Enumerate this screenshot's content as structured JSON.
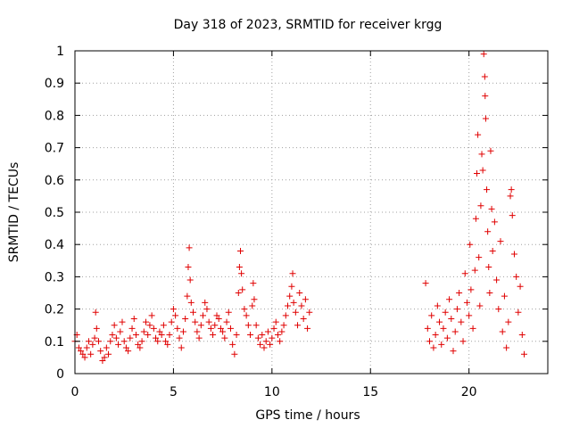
{
  "chart_data": {
    "type": "scatter",
    "title": "Day 318 of 2023, SRMTID for receiver krgg",
    "xlabel": "GPS time / hours",
    "ylabel": "SRMTID / TECUs",
    "xlim": [
      0,
      24
    ],
    "ylim": [
      0,
      1
    ],
    "x_ticks": [
      "0",
      "5",
      "10",
      "15",
      "20"
    ],
    "y_ticks": [
      "0",
      "0.1",
      "0.2",
      "0.3",
      "0.4",
      "0.5",
      "0.6",
      "0.7",
      "0.8",
      "0.9",
      "1"
    ],
    "grid": true,
    "marker": "plus",
    "color": "#e00000",
    "series": [
      {
        "name": "krgg",
        "points": [
          [
            0.0,
            0.1
          ],
          [
            0.1,
            0.12
          ],
          [
            0.2,
            0.08
          ],
          [
            0.3,
            0.07
          ],
          [
            0.4,
            0.06
          ],
          [
            0.5,
            0.05
          ],
          [
            0.6,
            0.08
          ],
          [
            0.7,
            0.1
          ],
          [
            0.8,
            0.06
          ],
          [
            0.9,
            0.09
          ],
          [
            1.0,
            0.11
          ],
          [
            1.05,
            0.19
          ],
          [
            1.1,
            0.14
          ],
          [
            1.2,
            0.1
          ],
          [
            1.3,
            0.07
          ],
          [
            1.4,
            0.04
          ],
          [
            1.5,
            0.05
          ],
          [
            1.6,
            0.08
          ],
          [
            1.7,
            0.06
          ],
          [
            1.8,
            0.1
          ],
          [
            1.9,
            0.12
          ],
          [
            2.0,
            0.15
          ],
          [
            2.1,
            0.11
          ],
          [
            2.2,
            0.09
          ],
          [
            2.3,
            0.13
          ],
          [
            2.4,
            0.16
          ],
          [
            2.5,
            0.1
          ],
          [
            2.6,
            0.08
          ],
          [
            2.7,
            0.07
          ],
          [
            2.8,
            0.11
          ],
          [
            2.9,
            0.14
          ],
          [
            3.0,
            0.17
          ],
          [
            3.1,
            0.12
          ],
          [
            3.2,
            0.09
          ],
          [
            3.3,
            0.08
          ],
          [
            3.4,
            0.1
          ],
          [
            3.5,
            0.13
          ],
          [
            3.6,
            0.16
          ],
          [
            3.7,
            0.12
          ],
          [
            3.8,
            0.15
          ],
          [
            3.9,
            0.18
          ],
          [
            4.0,
            0.14
          ],
          [
            4.1,
            0.11
          ],
          [
            4.2,
            0.1
          ],
          [
            4.3,
            0.13
          ],
          [
            4.4,
            0.12
          ],
          [
            4.5,
            0.15
          ],
          [
            4.6,
            0.1
          ],
          [
            4.7,
            0.09
          ],
          [
            4.8,
            0.12
          ],
          [
            4.9,
            0.16
          ],
          [
            5.0,
            0.2
          ],
          [
            5.1,
            0.18
          ],
          [
            5.2,
            0.14
          ],
          [
            5.3,
            0.11
          ],
          [
            5.4,
            0.08
          ],
          [
            5.5,
            0.13
          ],
          [
            5.6,
            0.17
          ],
          [
            5.7,
            0.24
          ],
          [
            5.75,
            0.33
          ],
          [
            5.8,
            0.39
          ],
          [
            5.85,
            0.29
          ],
          [
            5.9,
            0.22
          ],
          [
            6.0,
            0.19
          ],
          [
            6.1,
            0.16
          ],
          [
            6.2,
            0.13
          ],
          [
            6.3,
            0.11
          ],
          [
            6.4,
            0.15
          ],
          [
            6.5,
            0.18
          ],
          [
            6.6,
            0.22
          ],
          [
            6.7,
            0.2
          ],
          [
            6.8,
            0.16
          ],
          [
            6.9,
            0.14
          ],
          [
            7.0,
            0.12
          ],
          [
            7.1,
            0.15
          ],
          [
            7.2,
            0.18
          ],
          [
            7.3,
            0.17
          ],
          [
            7.4,
            0.14
          ],
          [
            7.5,
            0.13
          ],
          [
            7.6,
            0.11
          ],
          [
            7.7,
            0.16
          ],
          [
            7.8,
            0.19
          ],
          [
            7.9,
            0.14
          ],
          [
            8.0,
            0.09
          ],
          [
            8.1,
            0.06
          ],
          [
            8.2,
            0.12
          ],
          [
            8.3,
            0.25
          ],
          [
            8.35,
            0.33
          ],
          [
            8.4,
            0.38
          ],
          [
            8.45,
            0.31
          ],
          [
            8.5,
            0.26
          ],
          [
            8.6,
            0.2
          ],
          [
            8.7,
            0.18
          ],
          [
            8.8,
            0.15
          ],
          [
            8.9,
            0.12
          ],
          [
            9.0,
            0.21
          ],
          [
            9.05,
            0.28
          ],
          [
            9.1,
            0.23
          ],
          [
            9.2,
            0.15
          ],
          [
            9.3,
            0.11
          ],
          [
            9.4,
            0.09
          ],
          [
            9.5,
            0.12
          ],
          [
            9.6,
            0.08
          ],
          [
            9.7,
            0.1
          ],
          [
            9.8,
            0.13
          ],
          [
            9.9,
            0.09
          ],
          [
            10.0,
            0.11
          ],
          [
            10.1,
            0.14
          ],
          [
            10.2,
            0.16
          ],
          [
            10.3,
            0.12
          ],
          [
            10.4,
            0.1
          ],
          [
            10.5,
            0.13
          ],
          [
            10.6,
            0.15
          ],
          [
            10.7,
            0.18
          ],
          [
            10.8,
            0.21
          ],
          [
            10.9,
            0.24
          ],
          [
            11.0,
            0.27
          ],
          [
            11.05,
            0.31
          ],
          [
            11.1,
            0.22
          ],
          [
            11.2,
            0.19
          ],
          [
            11.3,
            0.15
          ],
          [
            11.4,
            0.25
          ],
          [
            11.5,
            0.21
          ],
          [
            11.6,
            0.17
          ],
          [
            11.7,
            0.23
          ],
          [
            11.8,
            0.14
          ],
          [
            11.9,
            0.19
          ],
          [
            17.8,
            0.28
          ],
          [
            17.9,
            0.14
          ],
          [
            18.0,
            0.1
          ],
          [
            18.1,
            0.18
          ],
          [
            18.2,
            0.08
          ],
          [
            18.3,
            0.12
          ],
          [
            18.4,
            0.21
          ],
          [
            18.5,
            0.16
          ],
          [
            18.6,
            0.09
          ],
          [
            18.7,
            0.14
          ],
          [
            18.8,
            0.19
          ],
          [
            18.9,
            0.11
          ],
          [
            19.0,
            0.23
          ],
          [
            19.1,
            0.17
          ],
          [
            19.2,
            0.07
          ],
          [
            19.3,
            0.13
          ],
          [
            19.4,
            0.2
          ],
          [
            19.5,
            0.25
          ],
          [
            19.6,
            0.16
          ],
          [
            19.7,
            0.1
          ],
          [
            19.8,
            0.31
          ],
          [
            19.9,
            0.22
          ],
          [
            20.0,
            0.18
          ],
          [
            20.05,
            0.4
          ],
          [
            20.1,
            0.26
          ],
          [
            20.2,
            0.14
          ],
          [
            20.3,
            0.32
          ],
          [
            20.35,
            0.48
          ],
          [
            20.4,
            0.62
          ],
          [
            20.45,
            0.74
          ],
          [
            20.5,
            0.36
          ],
          [
            20.55,
            0.21
          ],
          [
            20.6,
            0.52
          ],
          [
            20.65,
            0.68
          ],
          [
            20.7,
            0.63
          ],
          [
            20.75,
            0.99
          ],
          [
            20.8,
            0.92
          ],
          [
            20.82,
            0.86
          ],
          [
            20.85,
            0.79
          ],
          [
            20.9,
            0.57
          ],
          [
            20.95,
            0.44
          ],
          [
            21.0,
            0.33
          ],
          [
            21.05,
            0.25
          ],
          [
            21.1,
            0.69
          ],
          [
            21.15,
            0.51
          ],
          [
            21.2,
            0.38
          ],
          [
            21.3,
            0.47
          ],
          [
            21.4,
            0.29
          ],
          [
            21.5,
            0.2
          ],
          [
            21.6,
            0.41
          ],
          [
            21.7,
            0.13
          ],
          [
            21.8,
            0.24
          ],
          [
            21.9,
            0.08
          ],
          [
            22.0,
            0.16
          ],
          [
            22.1,
            0.55
          ],
          [
            22.15,
            0.57
          ],
          [
            22.2,
            0.49
          ],
          [
            22.3,
            0.37
          ],
          [
            22.4,
            0.3
          ],
          [
            22.5,
            0.19
          ],
          [
            22.6,
            0.27
          ],
          [
            22.7,
            0.12
          ],
          [
            22.8,
            0.06
          ]
        ]
      }
    ]
  }
}
